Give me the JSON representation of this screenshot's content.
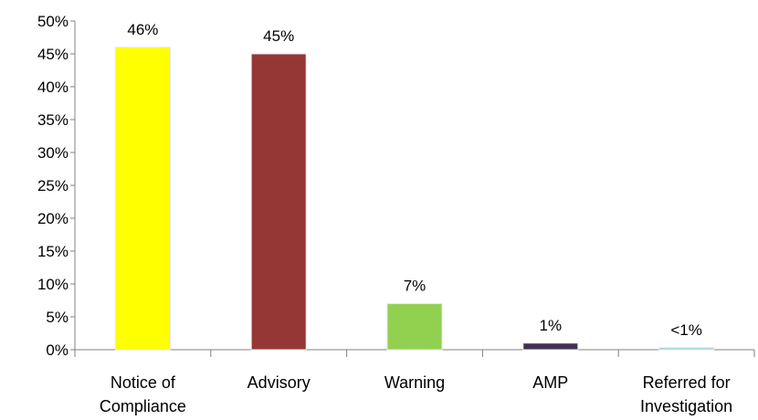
{
  "chart_data": {
    "type": "bar",
    "categories": [
      [
        "Notice of",
        "Compliance"
      ],
      [
        "Advisory"
      ],
      [
        "Warning"
      ],
      [
        "AMP"
      ],
      [
        "Referred for",
        "Investigation"
      ]
    ],
    "values": [
      46,
      45,
      7,
      1,
      0.3
    ],
    "data_labels": [
      "46%",
      "45%",
      "7%",
      "1%",
      "<1%"
    ],
    "colors": [
      "#FFFF00",
      "#953735",
      "#92D050",
      "#403152",
      "#93CDDD"
    ],
    "yticks": [
      "0%",
      "5%",
      "10%",
      "15%",
      "20%",
      "25%",
      "30%",
      "35%",
      "40%",
      "45%",
      "50%"
    ],
    "ylim": [
      0,
      50
    ],
    "ytick_step": 5,
    "grid": false,
    "legend": "none"
  }
}
